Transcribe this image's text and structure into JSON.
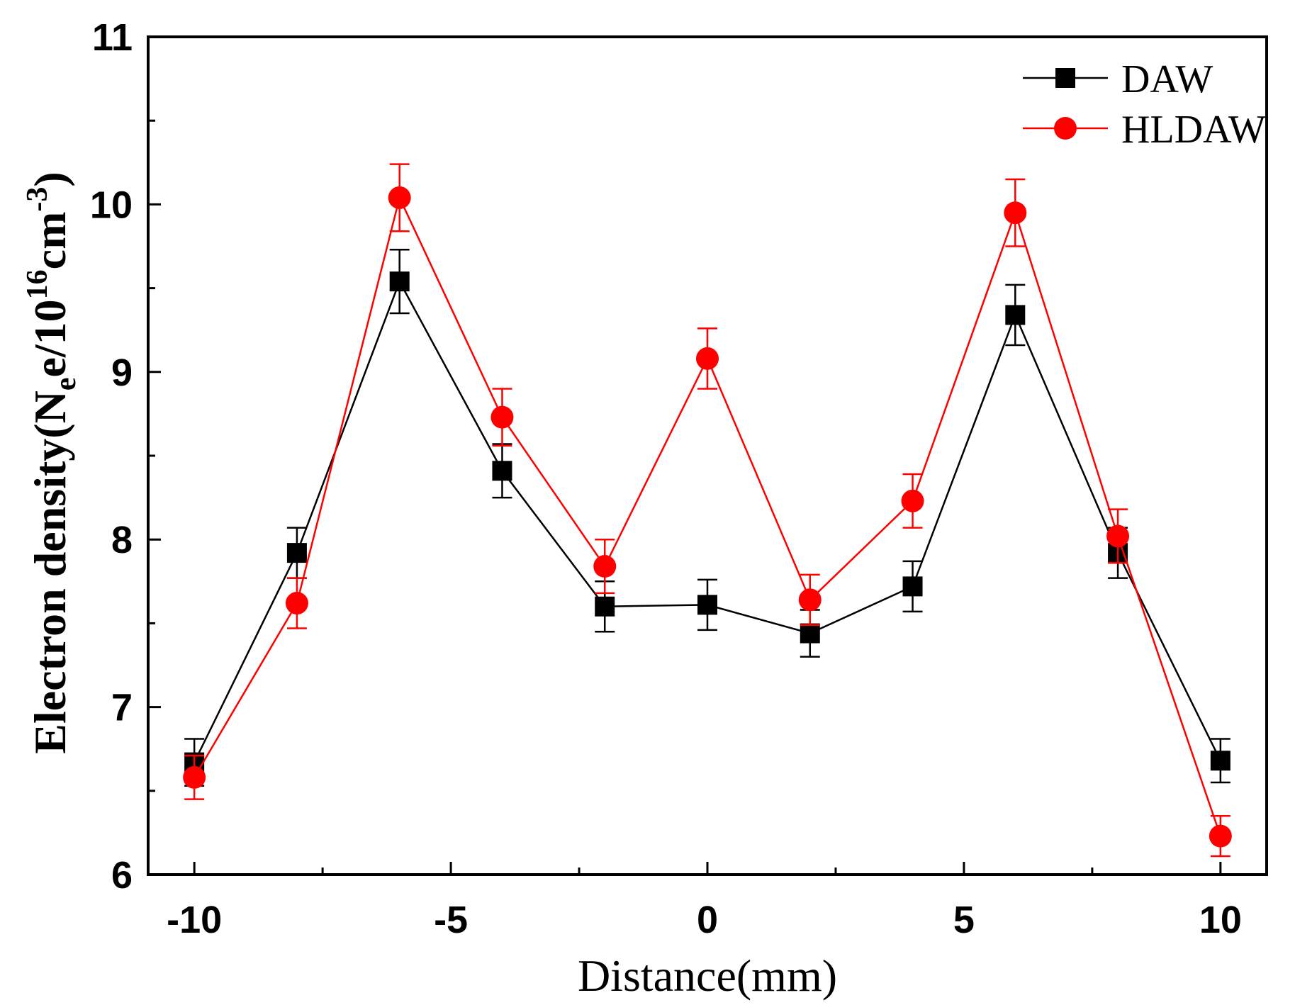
{
  "chart_data": {
    "type": "line",
    "title": "",
    "xlabel": "Distance(mm)",
    "ylabel": {
      "main": "Electron density(N",
      "sub": "e",
      "mid": "e/10",
      "sup1": "16",
      "unit": "cm",
      "sup2": "-3",
      "close": ")"
    },
    "xlim": [
      -10.9,
      10.9
    ],
    "ylim": [
      6,
      11
    ],
    "xticks": [
      -10,
      -5,
      0,
      5,
      10
    ],
    "xtick_labels": [
      "-10",
      "-5",
      "0",
      "5",
      "10"
    ],
    "yticks": [
      6,
      7,
      8,
      9,
      10,
      11
    ],
    "ytick_labels": [
      "6",
      "7",
      "8",
      "9",
      "10",
      "11"
    ],
    "x": [
      -10,
      -8,
      -6,
      -4,
      -2,
      0,
      2,
      4,
      6,
      8,
      10
    ],
    "series": [
      {
        "name": "DAW",
        "color": "#000000",
        "marker": "square",
        "values": [
          6.67,
          7.92,
          9.54,
          8.41,
          7.6,
          7.61,
          7.44,
          7.72,
          9.34,
          7.92,
          6.68
        ],
        "errors": [
          0.14,
          0.15,
          0.19,
          0.16,
          0.15,
          0.15,
          0.14,
          0.15,
          0.18,
          0.15,
          0.13
        ]
      },
      {
        "name": "HLDAW",
        "color": "#ff0000",
        "marker": "circle",
        "values": [
          6.58,
          7.62,
          10.04,
          8.73,
          7.84,
          9.08,
          7.64,
          8.23,
          9.95,
          8.02,
          6.23
        ],
        "errors": [
          0.13,
          0.15,
          0.2,
          0.17,
          0.16,
          0.18,
          0.15,
          0.16,
          0.2,
          0.16,
          0.12
        ]
      }
    ],
    "legend": {
      "position": "top-right",
      "entries": [
        "DAW",
        "HLDAW"
      ]
    }
  }
}
